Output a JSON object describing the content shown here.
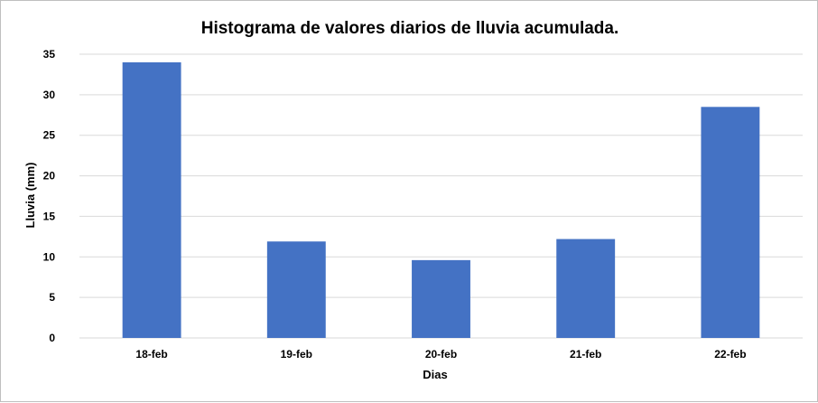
{
  "chart_data": {
    "type": "bar",
    "title": "Histograma de valores diarios de lluvia acumulada.",
    "xlabel": "Dias",
    "ylabel": "Lluvia (mm)",
    "categories": [
      "18-feb",
      "19-feb",
      "20-feb",
      "21-feb",
      "22-feb"
    ],
    "values": [
      34,
      11.9,
      9.6,
      12.2,
      28.5
    ],
    "ylim": [
      0,
      35
    ],
    "yticks": [
      0,
      5,
      10,
      15,
      20,
      25,
      30,
      35
    ],
    "grid": true,
    "legend": "none",
    "bar_color": "#4472c4"
  }
}
